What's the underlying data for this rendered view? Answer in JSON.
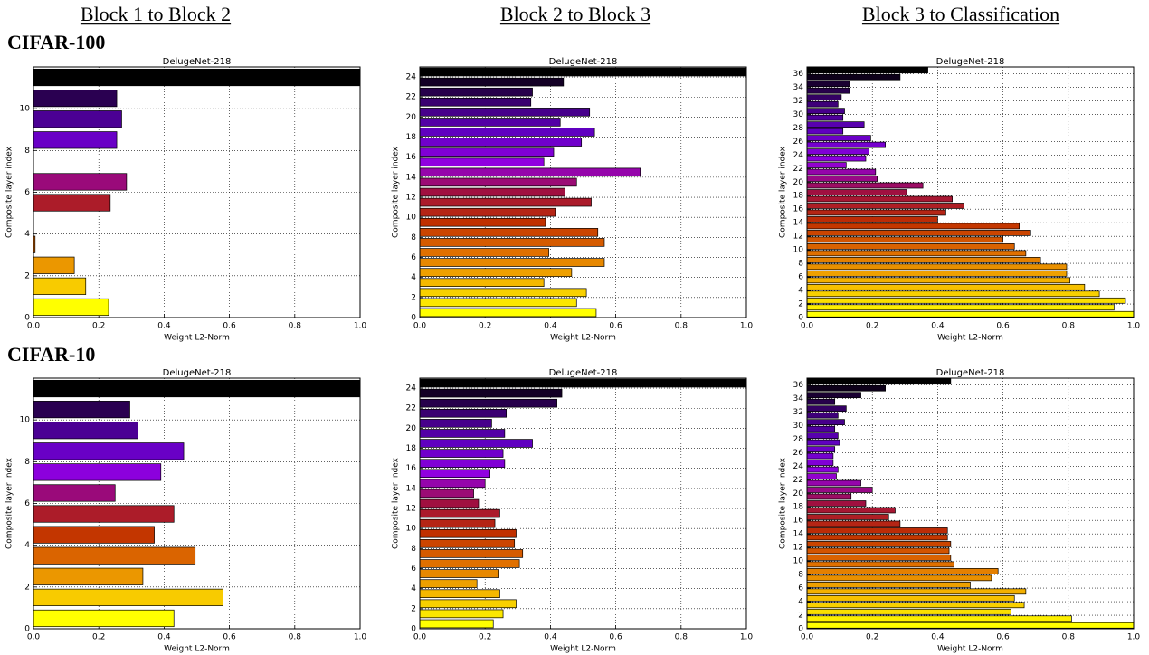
{
  "columns": [
    "Block 1 to Block 2",
    "Block 2 to Block 3",
    "Block 3 to Classification"
  ],
  "rows": [
    "CIFAR-100",
    "CIFAR-10"
  ],
  "chart_data": [
    {
      "type": "barh",
      "title": "DelugeNet-218",
      "xlabel": "Weight L2-Norm",
      "ylabel": "Composite layer index",
      "xlim": [
        0,
        1
      ],
      "ylim": [
        0,
        12
      ],
      "xticks": [
        {
          "value": 0,
          "label": "0.0"
        },
        0.2,
        0.4,
        0.6,
        0.8,
        {
          "value": 1,
          "label": "1.0"
        }
      ],
      "yticks": [
        0,
        2,
        4,
        6,
        8,
        10
      ],
      "grid": true,
      "colormap": [
        "#ffff00",
        "#f5b800",
        "#e07000",
        "#c03000",
        "#a01040",
        "#9000e0",
        "#6000c0",
        "#3a0070",
        "#000000"
      ],
      "values": [
        0.23,
        0.16,
        0.125,
        0.005,
        0,
        0.235,
        0.285,
        0,
        0.255,
        0.27,
        0.255,
        1.0
      ]
    },
    {
      "type": "barh",
      "title": "DelugeNet-218",
      "xlabel": "Weight L2-Norm",
      "ylabel": "Composite layer index",
      "xlim": [
        0,
        1
      ],
      "ylim": [
        0,
        25
      ],
      "xticks": [
        {
          "value": 0,
          "label": "0.0"
        },
        0.2,
        0.4,
        0.6,
        0.8,
        {
          "value": 1,
          "label": "1.0"
        }
      ],
      "yticks": [
        0,
        2,
        4,
        6,
        8,
        10,
        12,
        14,
        16,
        18,
        20,
        22,
        24
      ],
      "grid": true,
      "colormap": [
        "#ffff00",
        "#f5b800",
        "#e07000",
        "#c03000",
        "#a01040",
        "#9000e0",
        "#6000c0",
        "#3a0070",
        "#000000"
      ],
      "values": [
        0.54,
        0.48,
        0.51,
        0.38,
        0.465,
        0.565,
        0.395,
        0.565,
        0.545,
        0.385,
        0.415,
        0.525,
        0.445,
        0.48,
        0.675,
        0.38,
        0.41,
        0.495,
        0.535,
        0.43,
        0.52,
        0.34,
        0.345,
        0.44,
        1.0
      ]
    },
    {
      "type": "barh",
      "title": "DelugeNet-218",
      "xlabel": "Weight L2-Norm",
      "ylabel": "Composite layer index",
      "xlim": [
        0,
        1
      ],
      "ylim": [
        0,
        37
      ],
      "xticks": [
        {
          "value": 0,
          "label": "0.0"
        },
        0.2,
        0.4,
        0.6,
        0.8,
        {
          "value": 1,
          "label": "1.0"
        }
      ],
      "yticks": [
        0,
        2,
        4,
        6,
        8,
        10,
        12,
        14,
        16,
        18,
        20,
        22,
        24,
        26,
        28,
        30,
        32,
        34,
        36
      ],
      "grid": true,
      "colormap": [
        "#ffff00",
        "#f5b800",
        "#e07000",
        "#c03000",
        "#a01040",
        "#9000e0",
        "#6000c0",
        "#3a0070",
        "#000000"
      ],
      "values": [
        1.0,
        0.94,
        0.975,
        0.895,
        0.85,
        0.805,
        0.795,
        0.795,
        0.715,
        0.67,
        0.635,
        0.6,
        0.685,
        0.65,
        0.4,
        0.425,
        0.48,
        0.445,
        0.305,
        0.355,
        0.215,
        0.21,
        0.12,
        0.18,
        0.19,
        0.24,
        0.195,
        0.11,
        0.175,
        0.11,
        0.115,
        0.095,
        0.105,
        0.13,
        0.13,
        0.285,
        0.37
      ]
    },
    {
      "type": "barh",
      "title": "DelugeNet-218",
      "xlabel": "Weight L2-Norm",
      "ylabel": "Composite layer index",
      "xlim": [
        0,
        1
      ],
      "ylim": [
        0,
        12
      ],
      "xticks": [
        {
          "value": 0,
          "label": "0.0"
        },
        0.2,
        0.4,
        0.6,
        0.8,
        {
          "value": 1,
          "label": "1.0"
        }
      ],
      "yticks": [
        0,
        2,
        4,
        6,
        8,
        10
      ],
      "grid": true,
      "colormap": [
        "#ffff00",
        "#f5b800",
        "#e07000",
        "#c03000",
        "#a01040",
        "#9000e0",
        "#6000c0",
        "#3a0070",
        "#000000"
      ],
      "values": [
        0.43,
        0.58,
        0.335,
        0.495,
        0.37,
        0.43,
        0.25,
        0.39,
        0.46,
        0.32,
        0.295,
        1.0
      ]
    },
    {
      "type": "barh",
      "title": "DelugeNet-218",
      "xlabel": "Weight L2-Norm",
      "ylabel": "Composite layer index",
      "xlim": [
        0,
        1
      ],
      "ylim": [
        0,
        25
      ],
      "xticks": [
        {
          "value": 0,
          "label": "0.0"
        },
        0.2,
        0.4,
        0.6,
        0.8,
        {
          "value": 1,
          "label": "1.0"
        }
      ],
      "yticks": [
        0,
        2,
        4,
        6,
        8,
        10,
        12,
        14,
        16,
        18,
        20,
        22,
        24
      ],
      "grid": true,
      "colormap": [
        "#ffff00",
        "#f5b800",
        "#e07000",
        "#c03000",
        "#a01040",
        "#9000e0",
        "#6000c0",
        "#3a0070",
        "#000000"
      ],
      "values": [
        0.225,
        0.255,
        0.295,
        0.245,
        0.175,
        0.24,
        0.305,
        0.315,
        0.29,
        0.295,
        0.23,
        0.245,
        0.18,
        0.165,
        0.2,
        0.215,
        0.26,
        0.255,
        0.345,
        0.26,
        0.22,
        0.265,
        0.42,
        0.435,
        1.0
      ]
    },
    {
      "type": "barh",
      "title": "DelugeNet-218",
      "xlabel": "Weight L2-Norm",
      "ylabel": "Composite layer index",
      "xlim": [
        0,
        1
      ],
      "ylim": [
        0,
        37
      ],
      "xticks": [
        {
          "value": 0,
          "label": "0.0"
        },
        0.2,
        0.4,
        0.6,
        0.8,
        {
          "value": 1,
          "label": "1.0"
        }
      ],
      "yticks": [
        0,
        2,
        4,
        6,
        8,
        10,
        12,
        14,
        16,
        18,
        20,
        22,
        24,
        26,
        28,
        30,
        32,
        34,
        36
      ],
      "grid": true,
      "colormap": [
        "#ffff00",
        "#f5b800",
        "#e07000",
        "#c03000",
        "#a01040",
        "#9000e0",
        "#6000c0",
        "#3a0070",
        "#000000"
      ],
      "values": [
        1.0,
        0.81,
        0.625,
        0.665,
        0.635,
        0.67,
        0.5,
        0.565,
        0.585,
        0.45,
        0.44,
        0.435,
        0.44,
        0.43,
        0.43,
        0.285,
        0.25,
        0.27,
        0.18,
        0.135,
        0.2,
        0.165,
        0.09,
        0.095,
        0.08,
        0.08,
        0.085,
        0.1,
        0.095,
        0.085,
        0.115,
        0.095,
        0.12,
        0.085,
        0.165,
        0.24,
        0.44
      ]
    }
  ]
}
